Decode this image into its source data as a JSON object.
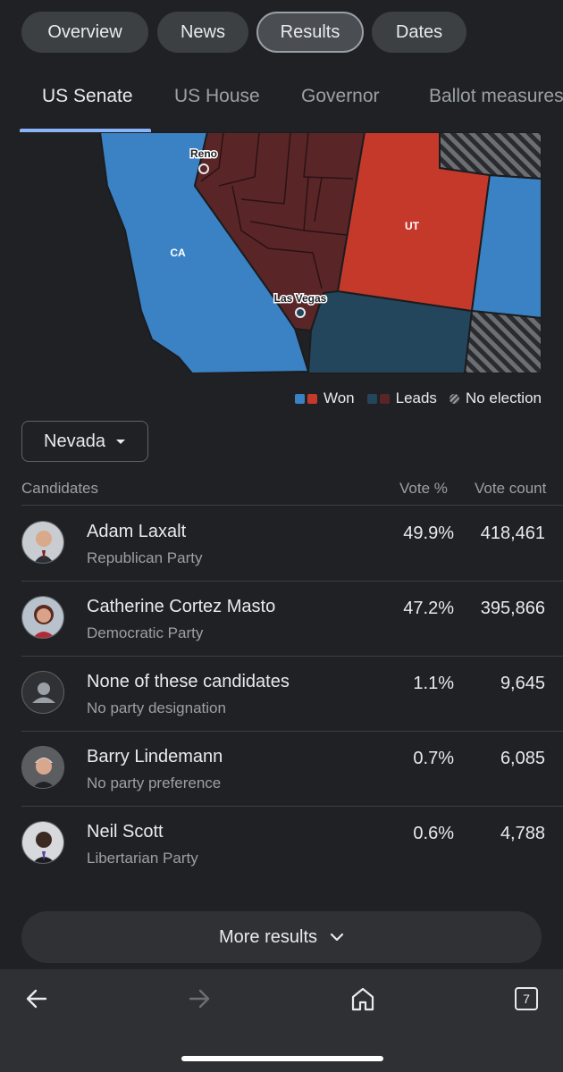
{
  "chips": [
    "Overview",
    "News",
    "Results",
    "Dates"
  ],
  "tabs": [
    "US Senate",
    "US House",
    "Governor",
    "Ballot measures"
  ],
  "map": {
    "labels": {
      "reno": "Reno",
      "las_vegas": "Las Vegas",
      "ca": "CA",
      "ut": "UT"
    },
    "colors": {
      "dem_won": "#3b82c4",
      "rep_won": "#c5392b",
      "dem_leads": "#24465c",
      "rep_leads": "#5a2527",
      "background": "#202124"
    }
  },
  "legend": {
    "won": "Won",
    "leads": "Leads",
    "no_election": "No election"
  },
  "state_selector": {
    "selected": "Nevada"
  },
  "table": {
    "headers": {
      "candidates": "Candidates",
      "vote_pct": "Vote %",
      "vote_count": "Vote count"
    },
    "rows": [
      {
        "name": "Adam Laxalt",
        "party": "Republican Party",
        "pct": "49.9%",
        "votes": "418,461",
        "avatar": "photo"
      },
      {
        "name": "Catherine Cortez Masto",
        "party": "Democratic Party",
        "pct": "47.2%",
        "votes": "395,866",
        "avatar": "photo"
      },
      {
        "name": "None of these candidates",
        "party": "No party designation",
        "pct": "1.1%",
        "votes": "9,645",
        "avatar": "person-icon"
      },
      {
        "name": "Barry Lindemann",
        "party": "No party preference",
        "pct": "0.7%",
        "votes": "6,085",
        "avatar": "photo"
      },
      {
        "name": "Neil Scott",
        "party": "Libertarian Party",
        "pct": "0.6%",
        "votes": "4,788",
        "avatar": "photo"
      }
    ]
  },
  "more_results": "More results",
  "bottom_nav": {
    "tab_count": "7",
    "icons": [
      "back-arrow-icon",
      "forward-arrow-icon",
      "home-icon",
      "tabs-icon"
    ]
  }
}
